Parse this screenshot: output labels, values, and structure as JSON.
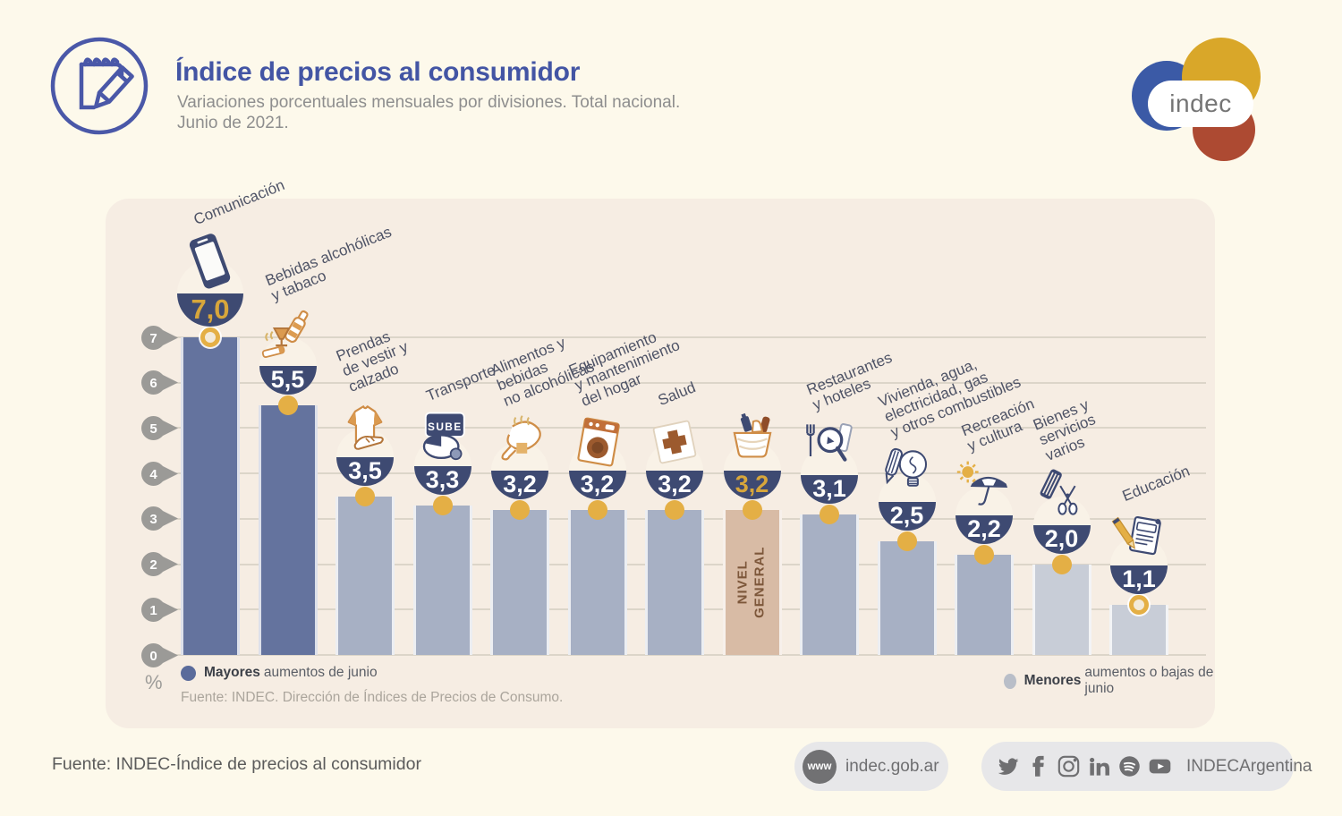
{
  "header": {
    "title": "Índice de precios al consumidor",
    "subtitle_line1": "Variaciones porcentuales mensuales por divisiones. Total nacional.",
    "subtitle_line2": "Junio de 2021.",
    "logo_text": "indec"
  },
  "chart_data": {
    "type": "bar",
    "title": "Índice de precios al consumidor. Variaciones porcentuales mensuales por divisiones. Total nacional. Junio de 2021.",
    "ylabel": "%",
    "ylim": [
      0,
      7
    ],
    "yticks": [
      0,
      1,
      2,
      3,
      4,
      5,
      6,
      7
    ],
    "grid": true,
    "categories": [
      "Comunicación",
      "Bebidas alcohólicas y tabaco",
      "Prendas de vestir y calzado",
      "Transporte",
      "Alimentos y bebidas no alcohólicas",
      "Equipamiento y mantenimiento del hogar",
      "Salud",
      "Nivel general",
      "Restaurantes y hoteles",
      "Vivienda, agua, electricidad, gas y otros combustibles",
      "Recreación y cultura",
      "Bienes y servicios varios",
      "Educación"
    ],
    "values": [
      7.0,
      5.5,
      3.5,
      3.3,
      3.2,
      3.2,
      3.2,
      3.2,
      3.1,
      2.5,
      2.2,
      2.0,
      1.1
    ],
    "bars": [
      {
        "id": "comunicacion",
        "label_lines": [
          "Comunicación"
        ],
        "value": 7.0,
        "display_value": "7,0",
        "shade": "dark",
        "icon": "smartphone",
        "marker": "ring",
        "value_style": "gold",
        "big": true
      },
      {
        "id": "bebidas-alcoholicas-y-tabaco",
        "label_lines": [
          "Bebidas alcohólicas",
          "y tabaco"
        ],
        "value": 5.5,
        "display_value": "5,5",
        "shade": "dark",
        "icon": "wine-tobacco",
        "marker": "dot",
        "value_style": "white"
      },
      {
        "id": "prendas-de-vestir-y-calzado",
        "label_lines": [
          "Prendas",
          "de vestir y",
          "calzado"
        ],
        "value": 3.5,
        "display_value": "3,5",
        "shade": "medium",
        "icon": "clothing",
        "marker": "dot",
        "value_style": "white"
      },
      {
        "id": "transporte",
        "label_lines": [
          "Transporte"
        ],
        "value": 3.3,
        "display_value": "3,3",
        "shade": "medium",
        "icon": "transport-card",
        "marker": "dot",
        "value_style": "white"
      },
      {
        "id": "alimentos-y-bebidas-no-alcoholicas",
        "label_lines": [
          "Alimentos y",
          "bebidas",
          "no alcohólicas"
        ],
        "value": 3.2,
        "display_value": "3,2",
        "shade": "medium",
        "icon": "food",
        "marker": "dot",
        "value_style": "white"
      },
      {
        "id": "equipamiento-y-mantenimiento-del-hogar",
        "label_lines": [
          "Equipamiento",
          "y mantenimiento",
          "del hogar"
        ],
        "value": 3.2,
        "display_value": "3,2",
        "shade": "medium",
        "icon": "appliance",
        "marker": "dot",
        "value_style": "white"
      },
      {
        "id": "salud",
        "label_lines": [
          "Salud"
        ],
        "value": 3.2,
        "display_value": "3,2",
        "shade": "medium",
        "icon": "health-cross",
        "marker": "dot",
        "value_style": "white"
      },
      {
        "id": "nivel-general",
        "label_lines": [],
        "bar_text": "NIVEL\nGENERAL",
        "value": 3.2,
        "display_value": "3,2",
        "shade": "general",
        "icon": "shopping-basket",
        "marker": "dot",
        "value_style": "gold"
      },
      {
        "id": "restaurantes-y-hoteles",
        "label_lines": [
          "Restaurantes",
          "y hoteles"
        ],
        "value": 3.1,
        "display_value": "3,1",
        "shade": "medium",
        "icon": "restaurant",
        "marker": "dot",
        "value_style": "white"
      },
      {
        "id": "vivienda-agua-electricidad-gas-y-otros-combustibles",
        "label_lines": [
          "Vivienda, agua,",
          "electricidad, gas",
          "y otros combustibles"
        ],
        "value": 2.5,
        "display_value": "2,5",
        "shade": "medium",
        "icon": "utilities",
        "marker": "dot",
        "value_style": "white"
      },
      {
        "id": "recreacion-y-cultura",
        "label_lines": [
          "Recreación",
          "y cultura"
        ],
        "value": 2.2,
        "display_value": "2,2",
        "shade": "medium",
        "icon": "recreation",
        "marker": "dot",
        "value_style": "white"
      },
      {
        "id": "bienes-y-servicios-varios",
        "label_lines": [
          "Bienes y",
          "servicios",
          "varios"
        ],
        "value": 2.0,
        "display_value": "2,0",
        "shade": "light",
        "icon": "grooming",
        "marker": "dot",
        "value_style": "white"
      },
      {
        "id": "educacion",
        "label_lines": [
          "Educación"
        ],
        "value": 1.1,
        "display_value": "1,1",
        "shade": "light",
        "icon": "education-notebook",
        "marker": "ring",
        "value_style": "white"
      }
    ],
    "legend": [
      {
        "bold": "Mayores",
        "rest": "aumentos de junio",
        "swatch": "#5a6b9b"
      },
      {
        "bold": "Menores",
        "rest": "aumentos o bajas de junio",
        "swatch": "#b9bec8"
      }
    ],
    "source": "Fuente: INDEC. Dirección de Índices de Precios de Consumo."
  },
  "colors": {
    "title_blue": "#4355a4",
    "page_bg": "#fdf9eb",
    "panel_bg": "#f6ede3",
    "bar_dark": "#64739e",
    "bar_medium": "#a7b0c4",
    "bar_light": "#c8cdd7",
    "bar_general": "#d8bba5",
    "badge_navy": "#3e4a72",
    "marker_gold": "#e4af45",
    "value_gold": "#d7a63b",
    "logo_blue": "#3b5aa6",
    "logo_yellow": "#d9a729",
    "logo_red": "#ad4a32"
  },
  "footer": {
    "source": "Fuente: INDEC-Índice de precios al consumidor",
    "website": {
      "icon_label": "www",
      "url": "indec.gob.ar"
    },
    "social": {
      "icons": [
        "twitter",
        "facebook",
        "instagram",
        "linkedin",
        "spotify",
        "youtube"
      ],
      "handle": "INDECArgentina"
    }
  }
}
